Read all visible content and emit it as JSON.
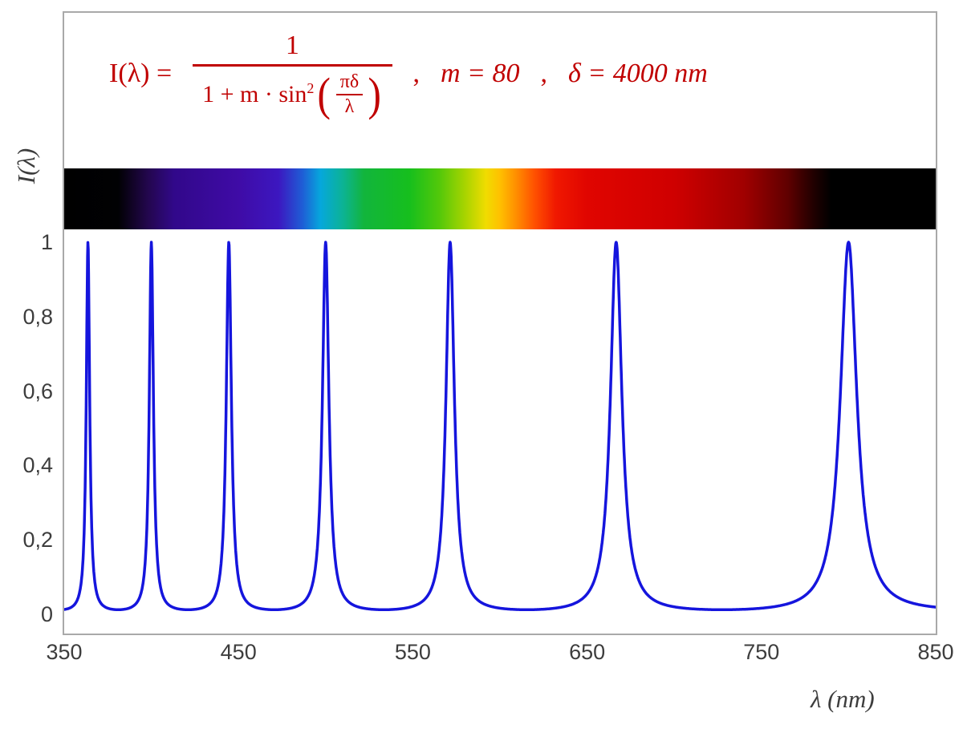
{
  "formula": {
    "lhs": "I(λ) =",
    "numerator": "1",
    "den_prefix": "1 + m · sin",
    "den_sup": "2",
    "paren_open": "(",
    "paren_close": ")",
    "inner_num": "πδ",
    "inner_den": "λ",
    "comma1": ",",
    "m_text": "m = 80",
    "comma2": ",",
    "delta_text": "δ = 4000 nm"
  },
  "axes": {
    "y_label": "I(λ)",
    "x_label": "λ  (nm)",
    "y_ticks": [
      {
        "label": "1",
        "value": 1.0
      },
      {
        "label": "0,8",
        "value": 0.8
      },
      {
        "label": "0,6",
        "value": 0.6
      },
      {
        "label": "0,4",
        "value": 0.4
      },
      {
        "label": "0,2",
        "value": 0.2
      },
      {
        "label": "0",
        "value": 0.0
      }
    ],
    "x_ticks": [
      {
        "label": "350",
        "value": 350
      },
      {
        "label": "450",
        "value": 450
      },
      {
        "label": "550",
        "value": 550
      },
      {
        "label": "650",
        "value": 650
      },
      {
        "label": "750",
        "value": 750
      },
      {
        "label": "850",
        "value": 850
      }
    ]
  },
  "chart_data": {
    "type": "line",
    "title": "I(λ) = 1 / (1 + m·sin²(πδ/λ)) ,  m = 80 ,  δ = 4000 nm",
    "xlabel": "λ (nm)",
    "ylabel": "I(λ)",
    "xlim": [
      350,
      850
    ],
    "ylim": [
      0,
      1
    ],
    "grid": false,
    "legend": "none",
    "function": "I(lambda) = 1 / (1 + m * sin^2(pi * delta / lambda))",
    "params": {
      "m": 80,
      "delta_nm": 4000
    },
    "peaks_nm": [
      363.64,
      400.0,
      444.44,
      500.0,
      571.43,
      666.67,
      800.0
    ],
    "peak_height": 1.0,
    "min_value_between_peaks": 0.0123,
    "series": [
      {
        "name": "I(λ)",
        "sampling": {
          "from_nm": 350,
          "to_nm": 850,
          "step_nm": 0.2
        }
      }
    ],
    "curve_color": "#1515dd",
    "formula_color": "#c00000"
  },
  "spectrum": {
    "description": "visible-light spectrum strip spanning 350–850 nm above the curve",
    "stops": [
      {
        "nm": 350,
        "color": "#000000"
      },
      {
        "nm": 381,
        "color": "#010103"
      },
      {
        "nm": 398,
        "color": "#23074d"
      },
      {
        "nm": 413,
        "color": "#31088a"
      },
      {
        "nm": 450,
        "color": "#3f0ba6"
      },
      {
        "nm": 473,
        "color": "#3c17c0"
      },
      {
        "nm": 487,
        "color": "#1e5fd6"
      },
      {
        "nm": 497,
        "color": "#06a7dc"
      },
      {
        "nm": 510,
        "color": "#0cb394"
      },
      {
        "nm": 522,
        "color": "#12b53c"
      },
      {
        "nm": 548,
        "color": "#16bf1d"
      },
      {
        "nm": 565,
        "color": "#52c80a"
      },
      {
        "nm": 580,
        "color": "#a8d400"
      },
      {
        "nm": 592,
        "color": "#f0dc00"
      },
      {
        "nm": 600,
        "color": "#ffc000"
      },
      {
        "nm": 610,
        "color": "#ff8a00"
      },
      {
        "nm": 620,
        "color": "#ff5000"
      },
      {
        "nm": 632,
        "color": "#f01800"
      },
      {
        "nm": 650,
        "color": "#e00500"
      },
      {
        "nm": 700,
        "color": "#cf0000"
      },
      {
        "nm": 740,
        "color": "#a00000"
      },
      {
        "nm": 765,
        "color": "#600000"
      },
      {
        "nm": 780,
        "color": "#200000"
      },
      {
        "nm": 790,
        "color": "#000000"
      },
      {
        "nm": 850,
        "color": "#000000"
      }
    ]
  },
  "colors": {
    "frame_border": "#a9a9a9",
    "tick_text": "#3d3d3d",
    "background": "#ffffff"
  }
}
